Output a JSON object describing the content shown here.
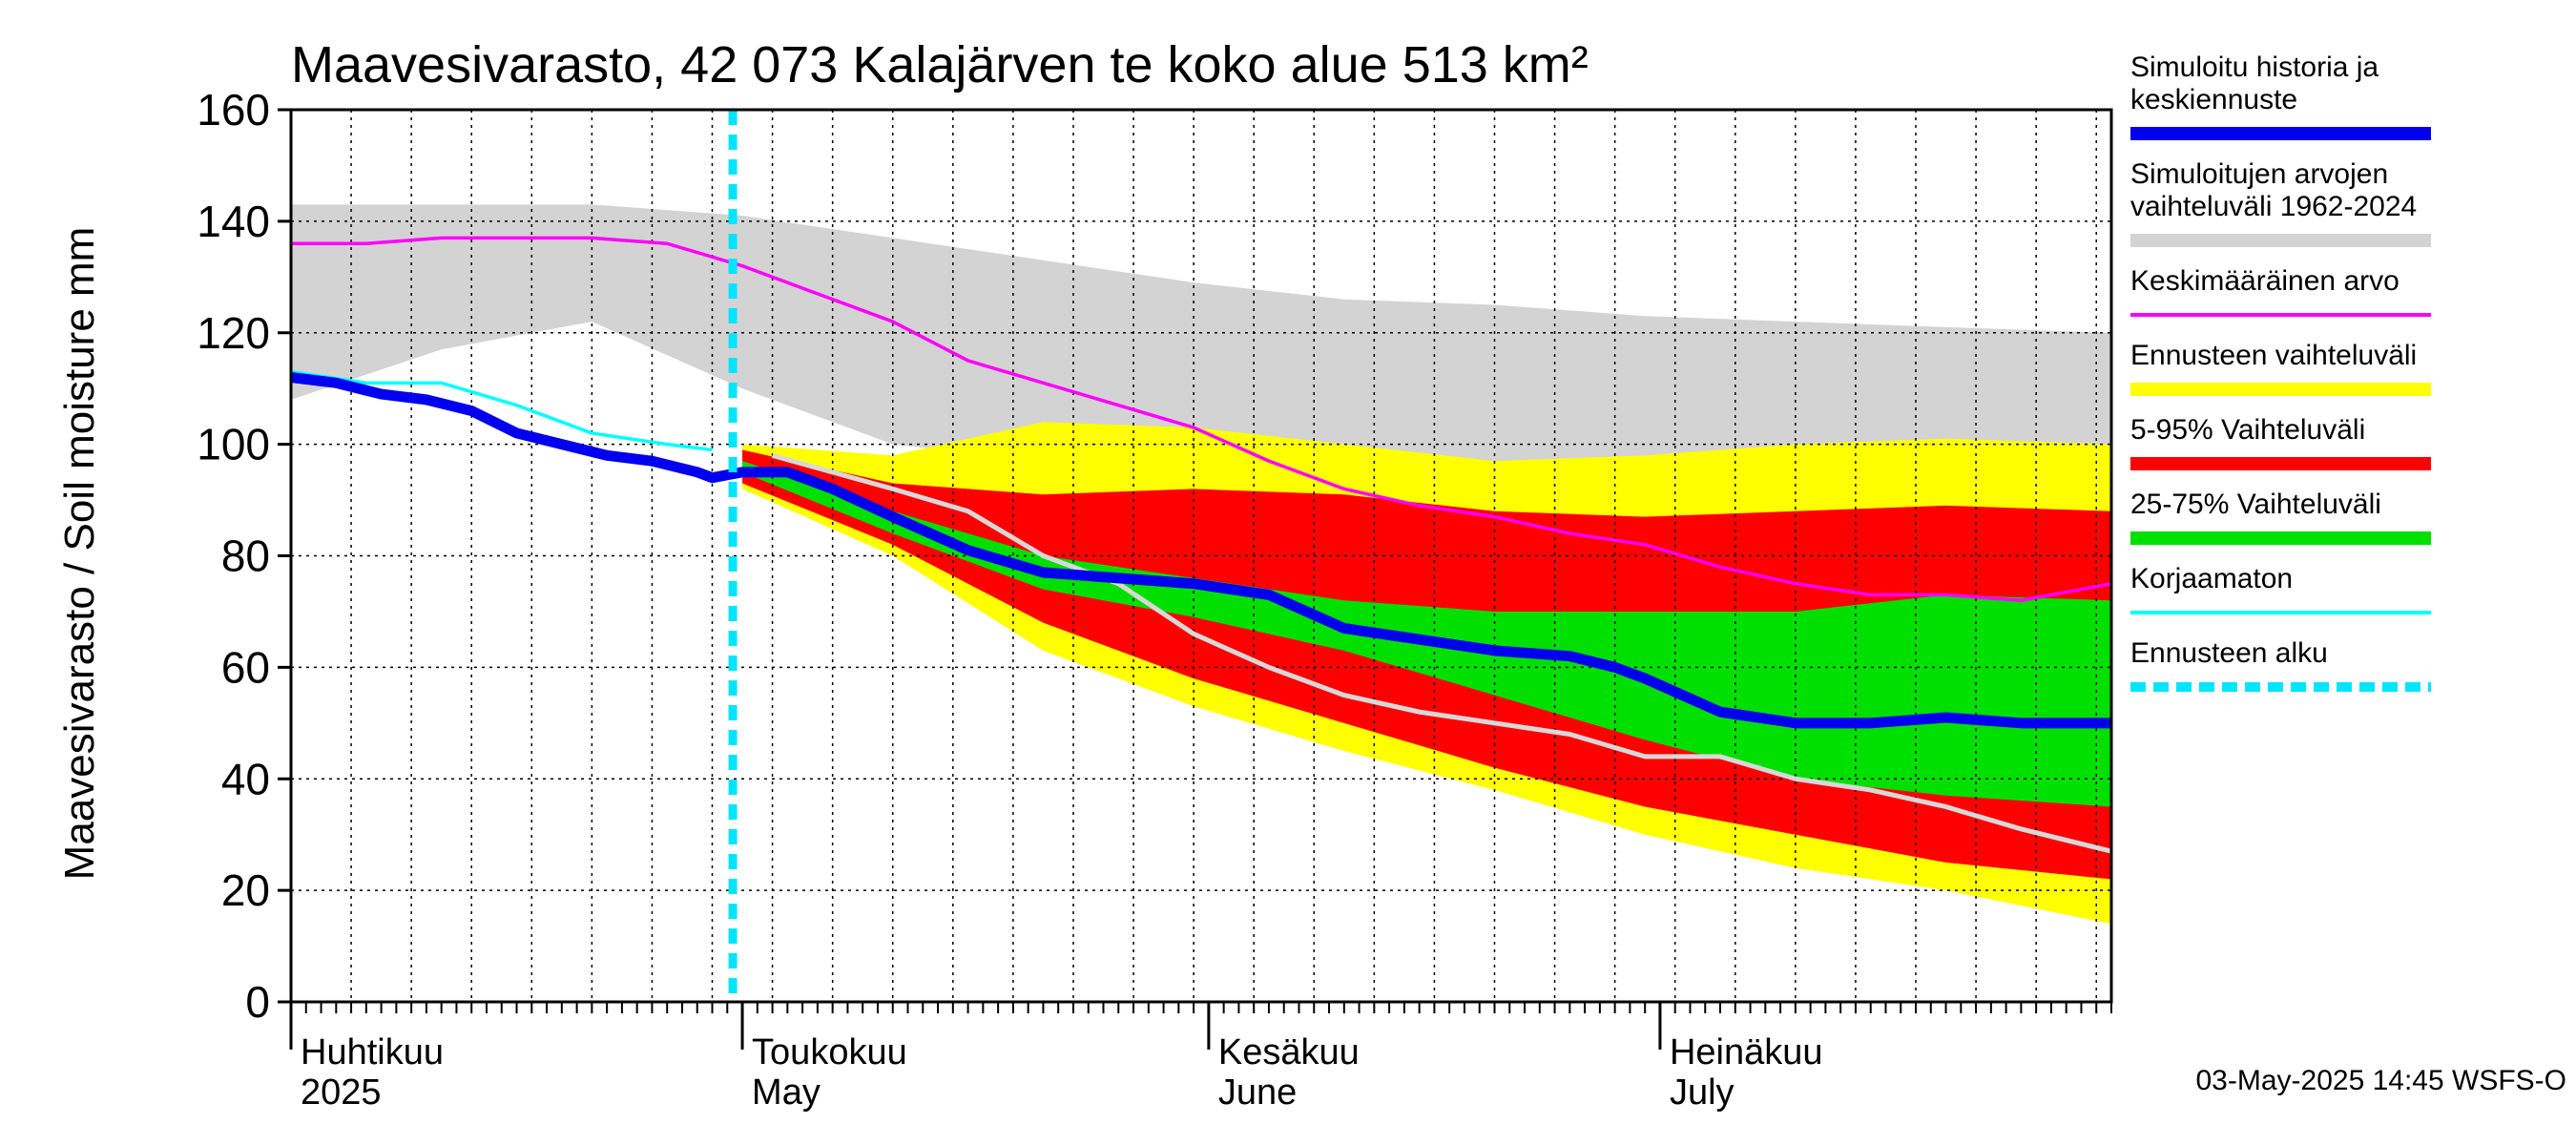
{
  "chart_data": {
    "type": "area",
    "title": "Maavesivarasto, 42 073 Kalajärven te koko alue 513 km²",
    "ylabel": "Maavesivarasto / Soil moisture   mm",
    "xlabel": "",
    "ylim": [
      0,
      160
    ],
    "yticks": [
      0,
      20,
      40,
      60,
      80,
      100,
      120,
      140,
      160
    ],
    "x_start_day": 0,
    "x_end_day": 121,
    "forecast_start_day": 30,
    "months": [
      {
        "fi": "Huhtikuu",
        "en": "2025",
        "day": 0
      },
      {
        "fi": "Toukokuu",
        "en": "May",
        "day": 30
      },
      {
        "fi": "Kesäkuu",
        "en": "June",
        "day": 61
      },
      {
        "fi": "Heinäkuu",
        "en": "July",
        "day": 91
      }
    ],
    "footer": "03-May-2025 14:45 WSFS-O",
    "colors": {
      "history_range": "#d3d3d3",
      "forecast_range": "#ffff00",
      "p5_95": "#ff0000",
      "p25_75": "#00e000",
      "simulated": "#0000ee",
      "mean": "#ff00ff",
      "uncorrected": "#00ffff",
      "forecast_start": "#00e5ff",
      "grey_line": "#d8d8d8"
    },
    "series": {
      "history_range": {
        "x": [
          0,
          10,
          20,
          30,
          40,
          50,
          60,
          70,
          80,
          90,
          100,
          110,
          121
        ],
        "upper": [
          143,
          143,
          143,
          141,
          137,
          133,
          129,
          126,
          125,
          123,
          122,
          121,
          120
        ],
        "lower": [
          108,
          117,
          122,
          110,
          100,
          97,
          96,
          94,
          94,
          95,
          96,
          97,
          96
        ]
      },
      "forecast_range": {
        "x": [
          30,
          40,
          50,
          60,
          70,
          80,
          90,
          100,
          110,
          121
        ],
        "upper": [
          100,
          98,
          104,
          103,
          100,
          97,
          98,
          100,
          101,
          100
        ],
        "lower": [
          92,
          80,
          63,
          53,
          45,
          38,
          30,
          24,
          20,
          14
        ]
      },
      "p5_95": {
        "x": [
          30,
          40,
          50,
          60,
          70,
          80,
          90,
          100,
          110,
          121
        ],
        "upper": [
          99,
          93,
          91,
          92,
          91,
          88,
          87,
          88,
          89,
          88
        ],
        "lower": [
          93,
          82,
          68,
          58,
          50,
          42,
          35,
          30,
          25,
          22
        ]
      },
      "p25_75": {
        "x": [
          30,
          40,
          50,
          60,
          70,
          80,
          90,
          100,
          110,
          121
        ],
        "upper": [
          97,
          88,
          80,
          76,
          72,
          70,
          70,
          70,
          73,
          72
        ],
        "lower": [
          95,
          84,
          74,
          69,
          63,
          55,
          47,
          40,
          37,
          35
        ]
      },
      "simulated": {
        "name": "Simuloitu historia ja keskiennuste",
        "x": [
          0,
          3,
          6,
          9,
          12,
          15,
          18,
          21,
          24,
          27,
          28,
          30,
          33,
          36,
          40,
          45,
          50,
          55,
          60,
          65,
          70,
          75,
          80,
          85,
          88,
          90,
          95,
          100,
          105,
          110,
          115,
          121
        ],
        "values": [
          112,
          111,
          109,
          108,
          106,
          102,
          100,
          98,
          97,
          95,
          94,
          95,
          95,
          92,
          87,
          81,
          77,
          76,
          75,
          73,
          67,
          65,
          63,
          62,
          60,
          58,
          52,
          50,
          50,
          51,
          50,
          50
        ]
      },
      "mean": {
        "name": "Keskimääräinen arvo",
        "x": [
          0,
          5,
          10,
          15,
          20,
          25,
          30,
          35,
          40,
          45,
          50,
          55,
          60,
          65,
          70,
          75,
          80,
          85,
          90,
          95,
          100,
          105,
          110,
          115,
          121
        ],
        "values": [
          136,
          136,
          137,
          137,
          137,
          136,
          132,
          127,
          122,
          115,
          111,
          107,
          103,
          97,
          92,
          89,
          87,
          84,
          82,
          78,
          75,
          73,
          73,
          72,
          75
        ]
      },
      "uncorrected": {
        "name": "Korjaamaton",
        "x": [
          0,
          5,
          10,
          15,
          20,
          25,
          28
        ],
        "values": [
          113,
          111,
          111,
          107,
          102,
          100,
          99
        ]
      },
      "grey_line": {
        "x": [
          32,
          40,
          45,
          50,
          55,
          60,
          65,
          70,
          75,
          80,
          85,
          90,
          95,
          100,
          105,
          110,
          115,
          121
        ],
        "values": [
          98,
          92,
          88,
          80,
          75,
          66,
          60,
          55,
          52,
          50,
          48,
          44,
          44,
          40,
          38,
          35,
          31,
          27
        ]
      }
    },
    "legend": [
      {
        "label": "Simuloitu historia ja",
        "label2": "keskiennuste",
        "color": "#0000ee",
        "style": "thick"
      },
      {
        "label": "Simuloitujen arvojen",
        "label2": "vaihteluväli 1962-2024",
        "color": "#d3d3d3",
        "style": "thick"
      },
      {
        "label": "Keskimääräinen arvo",
        "label2": "",
        "color": "#ff00ff",
        "style": "thin"
      },
      {
        "label": "Ennusteen vaihteluväli",
        "label2": "",
        "color": "#ffff00",
        "style": "thick"
      },
      {
        "label": "5-95% Vaihteluväli",
        "label2": "",
        "color": "#ff0000",
        "style": "thick"
      },
      {
        "label": "25-75% Vaihteluväli",
        "label2": "",
        "color": "#00e000",
        "style": "thick"
      },
      {
        "label": "Korjaamaton",
        "label2": "",
        "color": "#00ffff",
        "style": "thin"
      },
      {
        "label": "Ennusteen alku",
        "label2": "",
        "color": "#00e5ff",
        "style": "dashed"
      }
    ]
  }
}
